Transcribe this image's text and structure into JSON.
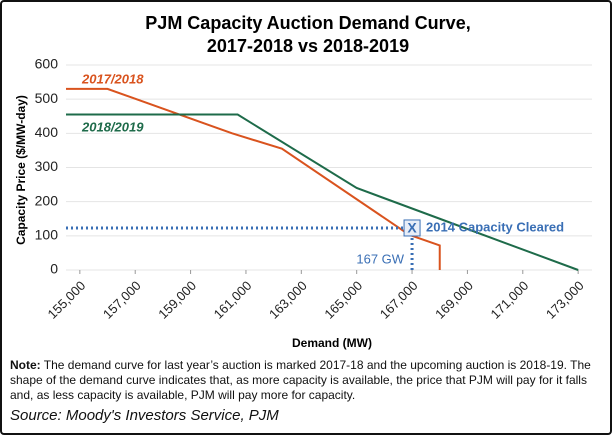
{
  "chart_data": {
    "type": "line",
    "title": [
      "PJM Capacity Auction Demand Curve,",
      "2017-2018 vs 2018-2019"
    ],
    "x_label": "Demand (MW)",
    "y_label": "Capacity Price ($/MW-day)",
    "xlim": [
      154500,
      173500
    ],
    "ylim": [
      0,
      600
    ],
    "xticks": [
      {
        "value": 155000,
        "label": "155,000"
      },
      {
        "value": 157000,
        "label": "157,000"
      },
      {
        "value": 159000,
        "label": "159,000"
      },
      {
        "value": 161000,
        "label": "161,000"
      },
      {
        "value": 163000,
        "label": "163,000"
      },
      {
        "value": 165000,
        "label": "165,000"
      },
      {
        "value": 167000,
        "label": "167,000"
      },
      {
        "value": 169000,
        "label": "169,000"
      },
      {
        "value": 171000,
        "label": "171,000"
      },
      {
        "value": 173000,
        "label": "173,000"
      }
    ],
    "yticks": [
      0,
      100,
      200,
      300,
      400,
      500,
      600
    ],
    "series": [
      {
        "name": "2017/2018",
        "color": "#d9531e",
        "x": [
          154500,
          156000,
          160500,
          162300,
          166900,
          168000,
          168000
        ],
        "values": [
          530,
          530,
          400,
          355,
          103,
          72,
          0
        ]
      },
      {
        "name": "2018/2019",
        "color": "#1e6b4a",
        "x": [
          154500,
          160700,
          165000,
          168000,
          173000
        ],
        "values": [
          455,
          455,
          240,
          150,
          0
        ]
      }
    ],
    "cleared": {
      "marker": "X",
      "label": "2014 Capacity Cleared",
      "x": 167000,
      "y": 123,
      "x_label": "167 GW",
      "color": "#3a6fb5"
    },
    "note": {
      "label": "Note:",
      "text": "The demand curve for last year’s auction is marked 2017-18 and the upcoming auction is 2018-19. The shape of the demand curve indicates that, as more capacity is available, the price that PJM will pay for it falls and, as less capacity is available, PJM will pay more for capacity."
    },
    "source": "Source: Moody's Investors Service, PJM"
  }
}
